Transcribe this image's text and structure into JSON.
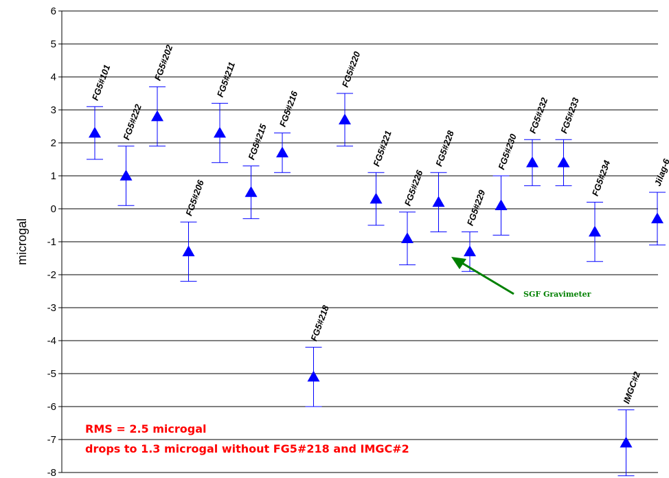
{
  "chart_data": {
    "type": "scatter",
    "title": "",
    "xlabel": "",
    "ylabel": "microgal",
    "ylim": [
      -8,
      6
    ],
    "yticks": [
      6,
      5,
      4,
      3,
      2,
      1,
      0,
      -1,
      -2,
      -3,
      -4,
      -5,
      -6,
      -7,
      -8
    ],
    "grid": "horizontal",
    "marker": "triangle",
    "marker_color": "#0000ff",
    "points": [
      {
        "label": "FG5#101",
        "value": 2.3,
        "err_low": 1.5,
        "err_high": 3.1
      },
      {
        "label": "FG5#222",
        "value": 1.0,
        "err_low": 0.1,
        "err_high": 1.9
      },
      {
        "label": "FG5#202",
        "value": 2.8,
        "err_low": 1.9,
        "err_high": 3.7
      },
      {
        "label": "FG5#206",
        "value": -1.3,
        "err_low": -2.2,
        "err_high": -0.4
      },
      {
        "label": "FG5#211",
        "value": 2.3,
        "err_low": 1.4,
        "err_high": 3.2
      },
      {
        "label": "FG5#215",
        "value": 0.5,
        "err_low": -0.3,
        "err_high": 1.3
      },
      {
        "label": "FG5#216",
        "value": 1.7,
        "err_low": 1.1,
        "err_high": 2.3
      },
      {
        "label": "FG5#218",
        "value": -5.1,
        "err_low": -6.0,
        "err_high": -4.2
      },
      {
        "label": "FG5#220",
        "value": 2.7,
        "err_low": 1.9,
        "err_high": 3.5
      },
      {
        "label": "FG5#221",
        "value": 0.3,
        "err_low": -0.5,
        "err_high": 1.1
      },
      {
        "label": "FG5#226",
        "value": -0.9,
        "err_low": -1.7,
        "err_high": -0.1
      },
      {
        "label": "FG5#228",
        "value": 0.2,
        "err_low": -0.7,
        "err_high": 1.1
      },
      {
        "label": "FG5#229",
        "value": -1.3,
        "err_low": -1.9,
        "err_high": -0.7
      },
      {
        "label": "FG5#230",
        "value": 0.1,
        "err_low": -0.8,
        "err_high": 1.0
      },
      {
        "label": "FG5#232",
        "value": 1.4,
        "err_low": 0.7,
        "err_high": 2.1
      },
      {
        "label": "FG5#233",
        "value": 1.4,
        "err_low": 0.7,
        "err_high": 2.1
      },
      {
        "label": "FG5#234",
        "value": -0.7,
        "err_low": -1.6,
        "err_high": 0.2
      },
      {
        "label": "IMGC#2",
        "value": -7.1,
        "err_low": -8.1,
        "err_high": -6.1
      },
      {
        "label": "Jilag-6",
        "value": -0.3,
        "err_low": -1.1,
        "err_high": 0.5
      }
    ],
    "notes": [
      "RMS = 2.5 microgal",
      "drops to 1.3 microgal without FG5#218 and IMGC#2"
    ],
    "annotation": {
      "text": "SGF Gravimeter",
      "target": "FG5#229",
      "color": "#008000"
    }
  }
}
